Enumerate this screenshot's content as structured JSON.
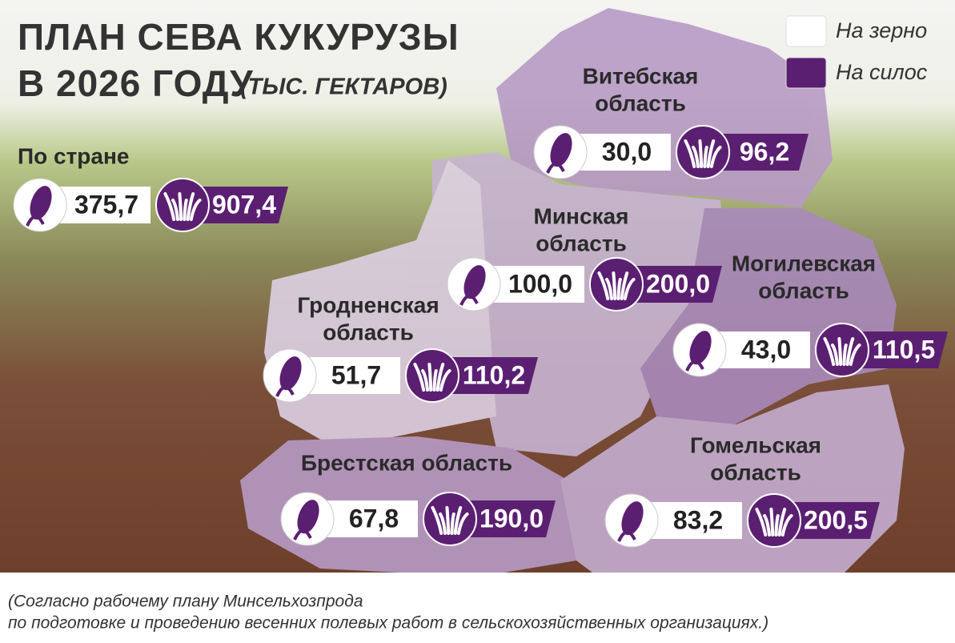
{
  "title": {
    "line1": "ПЛАН СЕВА КУКУРУЗЫ",
    "line2": "В 2026 ГОДУ",
    "unit": "(ТЫС. ГЕКТАРОВ)"
  },
  "legend": [
    {
      "label": "На зерно",
      "color": "#ffffff"
    },
    {
      "label": "На силос",
      "color": "#5b1f72"
    }
  ],
  "country": {
    "label": "По стране",
    "grain": "375,7",
    "silage": "907,4"
  },
  "regions": [
    {
      "name": [
        "Витебская",
        "область"
      ],
      "grain": "30,0",
      "silage": "96,2"
    },
    {
      "name": [
        "Минская",
        "область"
      ],
      "grain": "100,0",
      "silage": "200,0"
    },
    {
      "name": [
        "Могилевская",
        "область"
      ],
      "grain": "43,0",
      "silage": "110,5"
    },
    {
      "name": [
        "Гродненская",
        "область"
      ],
      "grain": "51,7",
      "silage": "110,2"
    },
    {
      "name": [
        "Брестская область"
      ],
      "grain": "67,8",
      "silage": "190,0"
    },
    {
      "name": [
        "Гомельская",
        "область"
      ],
      "grain": "83,2",
      "silage": "200,5"
    }
  ],
  "footnote": [
    "(Согласно рабочему плану Минсельхозпрода",
    "по подготовке и проведению весенних полевых работ в сельскохозяйственных организациях.)"
  ]
}
